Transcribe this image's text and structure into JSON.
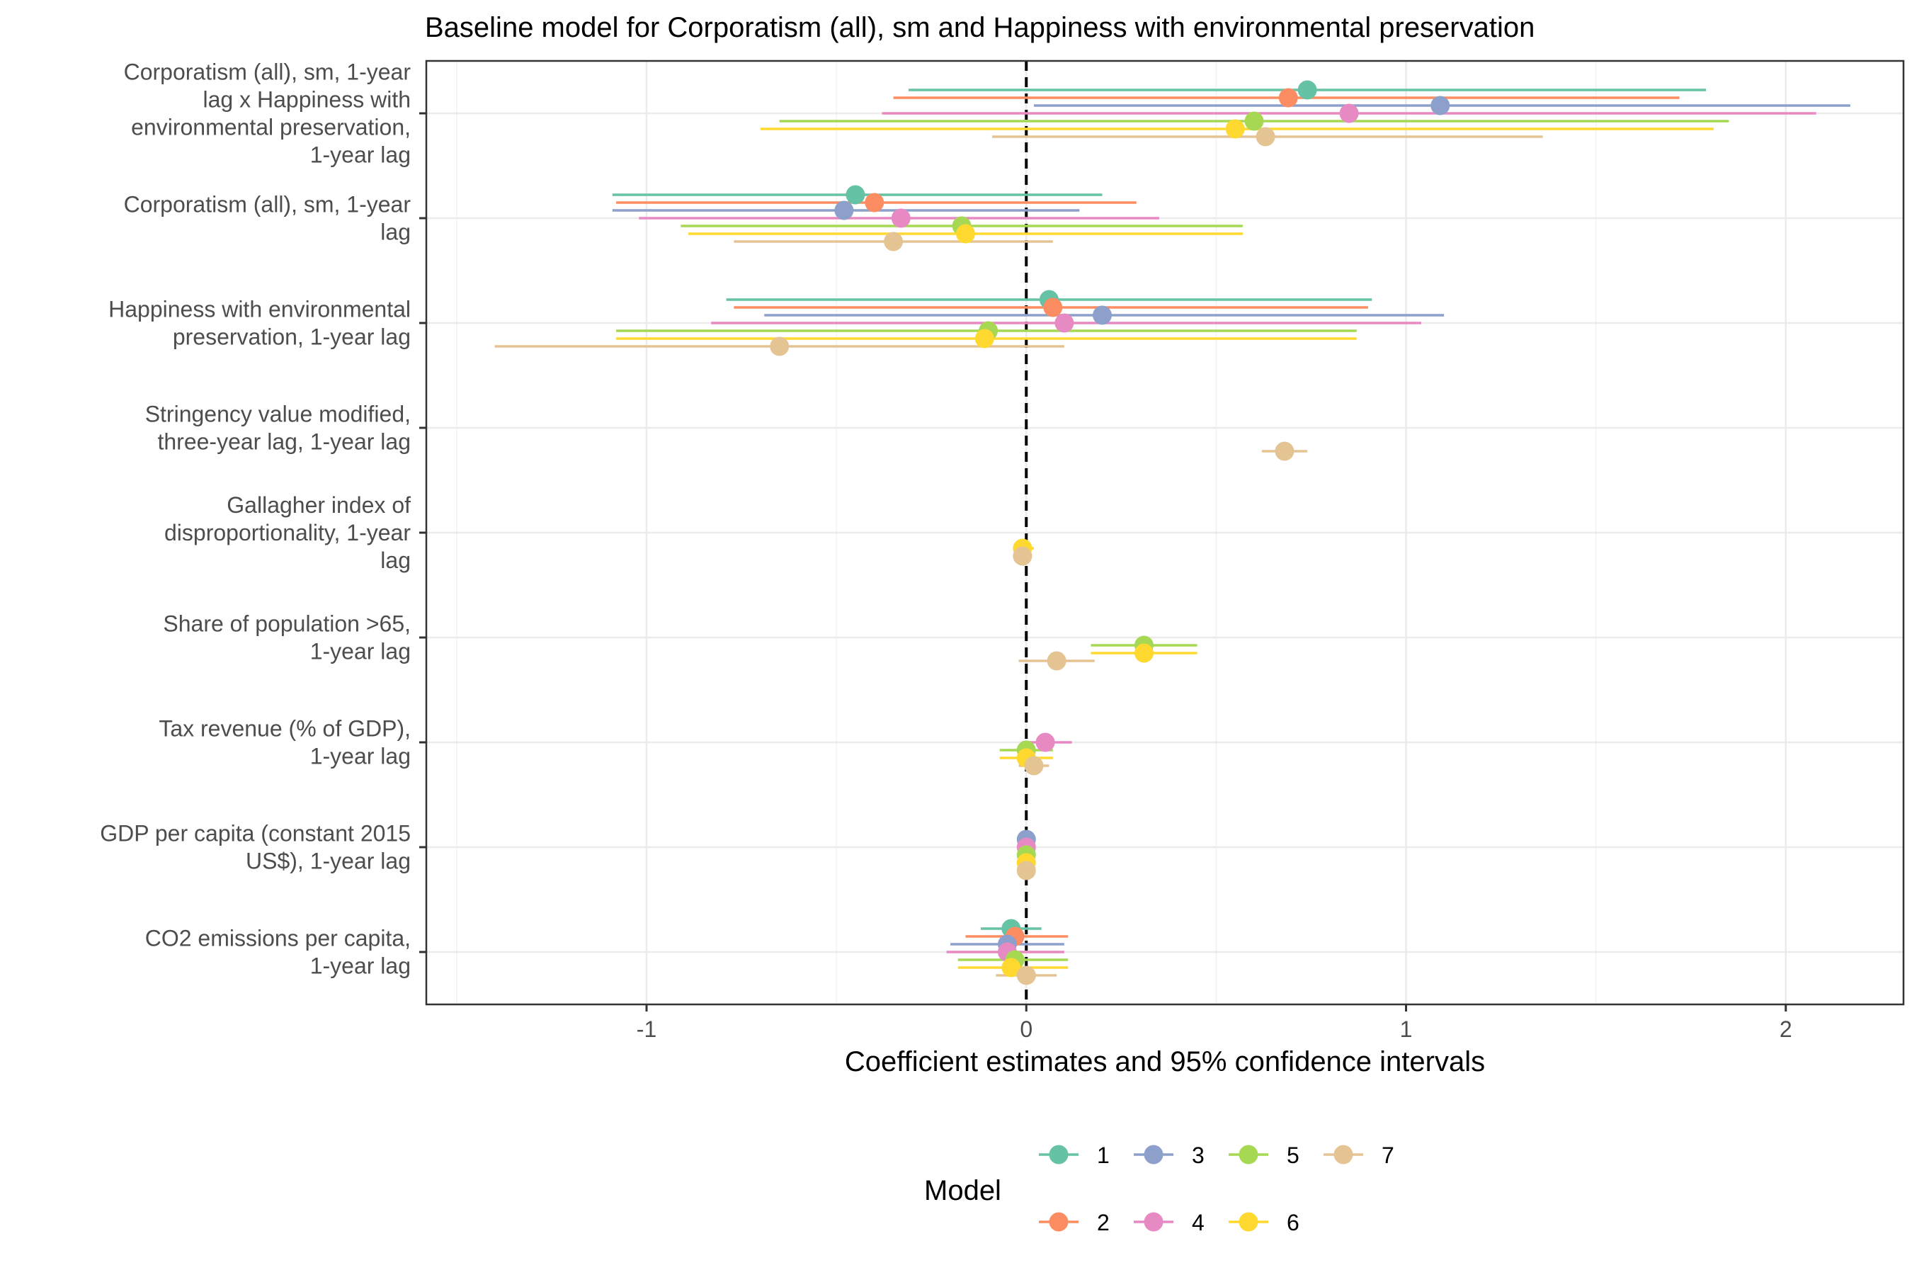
{
  "chart_data": {
    "type": "coefficient-plot",
    "title": "Baseline model for Corporatism (all), sm and Happiness with environmental preservation",
    "xlabel": "Coefficient estimates and 95% confidence intervals",
    "ylabel": "",
    "xlim": [
      -1.58,
      2.31
    ],
    "xticks": [
      -1,
      0,
      1,
      2
    ],
    "xtick_labels": [
      "-1",
      "0",
      "1",
      "2"
    ],
    "reference_line": 0,
    "grid": true,
    "legend": {
      "title": "Model",
      "position": "bottom",
      "entries": [
        {
          "label": "1",
          "color": "#66c2a5"
        },
        {
          "label": "3",
          "color": "#8da0cb"
        },
        {
          "label": "5",
          "color": "#a6d854"
        },
        {
          "label": "7",
          "color": "#e5c494"
        },
        {
          "label": "2",
          "color": "#fc8d62"
        },
        {
          "label": "4",
          "color": "#e78ac3"
        },
        {
          "label": "6",
          "color": "#ffd92f"
        }
      ]
    },
    "terms": [
      {
        "lines": [
          "Corporatism (all), sm, 1-year",
          "lag x Happiness with",
          "environmental preservation,",
          "1-year lag"
        ]
      },
      {
        "lines": [
          "Corporatism (all), sm, 1-year",
          "lag"
        ]
      },
      {
        "lines": [
          "Happiness with environmental",
          "preservation, 1-year lag"
        ]
      },
      {
        "lines": [
          "Stringency value modified,",
          "three-year lag, 1-year lag"
        ]
      },
      {
        "lines": [
          "Gallagher index of",
          "disproportionality, 1-year",
          "lag"
        ]
      },
      {
        "lines": [
          "Share of population >65,",
          "1-year lag"
        ]
      },
      {
        "lines": [
          "Tax revenue (% of GDP),",
          "1-year lag"
        ]
      },
      {
        "lines": [
          "GDP per capita (constant 2015",
          "US$), 1-year lag"
        ]
      },
      {
        "lines": [
          "CO2 emissions per capita,",
          "1-year lag"
        ]
      }
    ],
    "series": [
      {
        "name": "1",
        "color": "#66c2a5",
        "points": [
          {
            "term": 0,
            "est": 0.74,
            "lo": -0.31,
            "hi": 1.79
          },
          {
            "term": 1,
            "est": -0.45,
            "lo": -1.09,
            "hi": 0.2
          },
          {
            "term": 2,
            "est": 0.06,
            "lo": -0.79,
            "hi": 0.91
          },
          {
            "term": 8,
            "est": -0.04,
            "lo": -0.12,
            "hi": 0.04
          }
        ]
      },
      {
        "name": "2",
        "color": "#fc8d62",
        "points": [
          {
            "term": 0,
            "est": 0.69,
            "lo": -0.35,
            "hi": 1.72
          },
          {
            "term": 1,
            "est": -0.4,
            "lo": -1.08,
            "hi": 0.29
          },
          {
            "term": 2,
            "est": 0.07,
            "lo": -0.77,
            "hi": 0.9
          },
          {
            "term": 8,
            "est": -0.03,
            "lo": -0.16,
            "hi": 0.11
          }
        ]
      },
      {
        "name": "3",
        "color": "#8da0cb",
        "points": [
          {
            "term": 0,
            "est": 1.09,
            "lo": 0.02,
            "hi": 2.17
          },
          {
            "term": 1,
            "est": -0.48,
            "lo": -1.09,
            "hi": 0.14
          },
          {
            "term": 2,
            "est": 0.2,
            "lo": -0.69,
            "hi": 1.1
          },
          {
            "term": 7,
            "est": 0.0,
            "lo": -0.01,
            "hi": 0.01
          },
          {
            "term": 8,
            "est": -0.05,
            "lo": -0.2,
            "hi": 0.1
          }
        ]
      },
      {
        "name": "4",
        "color": "#e78ac3",
        "points": [
          {
            "term": 0,
            "est": 0.85,
            "lo": -0.38,
            "hi": 2.08
          },
          {
            "term": 1,
            "est": -0.33,
            "lo": -1.02,
            "hi": 0.35
          },
          {
            "term": 2,
            "est": 0.1,
            "lo": -0.83,
            "hi": 1.04
          },
          {
            "term": 6,
            "est": 0.05,
            "lo": -0.01,
            "hi": 0.12
          },
          {
            "term": 7,
            "est": 0.0,
            "lo": -0.01,
            "hi": 0.01
          },
          {
            "term": 8,
            "est": -0.05,
            "lo": -0.21,
            "hi": 0.1
          }
        ]
      },
      {
        "name": "5",
        "color": "#a6d854",
        "points": [
          {
            "term": 0,
            "est": 0.6,
            "lo": -0.65,
            "hi": 1.85
          },
          {
            "term": 1,
            "est": -0.17,
            "lo": -0.91,
            "hi": 0.57
          },
          {
            "term": 2,
            "est": -0.1,
            "lo": -1.08,
            "hi": 0.87
          },
          {
            "term": 5,
            "est": 0.31,
            "lo": 0.17,
            "hi": 0.45
          },
          {
            "term": 6,
            "est": 0.0,
            "lo": -0.07,
            "hi": 0.07
          },
          {
            "term": 7,
            "est": 0.0,
            "lo": -0.01,
            "hi": 0.01
          },
          {
            "term": 8,
            "est": -0.03,
            "lo": -0.18,
            "hi": 0.11
          }
        ]
      },
      {
        "name": "6",
        "color": "#ffd92f",
        "points": [
          {
            "term": 0,
            "est": 0.55,
            "lo": -0.7,
            "hi": 1.81
          },
          {
            "term": 1,
            "est": -0.16,
            "lo": -0.89,
            "hi": 0.57
          },
          {
            "term": 2,
            "est": -0.11,
            "lo": -1.08,
            "hi": 0.87
          },
          {
            "term": 4,
            "est": -0.01,
            "lo": -0.03,
            "hi": 0.02
          },
          {
            "term": 5,
            "est": 0.31,
            "lo": 0.17,
            "hi": 0.45
          },
          {
            "term": 6,
            "est": 0.0,
            "lo": -0.07,
            "hi": 0.07
          },
          {
            "term": 7,
            "est": 0.0,
            "lo": -0.01,
            "hi": 0.01
          },
          {
            "term": 8,
            "est": -0.04,
            "lo": -0.18,
            "hi": 0.11
          }
        ]
      },
      {
        "name": "7",
        "color": "#e5c494",
        "points": [
          {
            "term": 0,
            "est": 0.63,
            "lo": -0.09,
            "hi": 1.36
          },
          {
            "term": 1,
            "est": -0.35,
            "lo": -0.77,
            "hi": 0.07
          },
          {
            "term": 2,
            "est": -0.65,
            "lo": -1.4,
            "hi": 0.1
          },
          {
            "term": 3,
            "est": 0.68,
            "lo": 0.62,
            "hi": 0.74
          },
          {
            "term": 4,
            "est": -0.01,
            "lo": -0.02,
            "hi": 0.01
          },
          {
            "term": 5,
            "est": 0.08,
            "lo": -0.02,
            "hi": 0.18
          },
          {
            "term": 6,
            "est": 0.02,
            "lo": -0.02,
            "hi": 0.06
          },
          {
            "term": 7,
            "est": 0.0,
            "lo": -0.01,
            "hi": 0.01
          },
          {
            "term": 8,
            "est": 0.0,
            "lo": -0.08,
            "hi": 0.08
          }
        ]
      }
    ]
  }
}
